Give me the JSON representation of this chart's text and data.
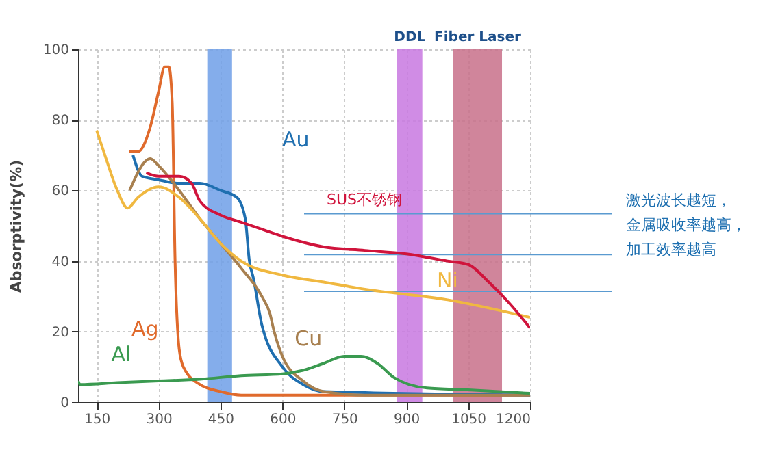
{
  "chart_data": {
    "type": "line",
    "ylabel": "Absorptivity(%)",
    "xlim": [
      105,
      1200
    ],
    "ylim": [
      0,
      100
    ],
    "xticks": [
      150,
      300,
      450,
      600,
      750,
      900,
      1050,
      1200
    ],
    "yticks": [
      0,
      20,
      40,
      60,
      80,
      100
    ],
    "grid": true,
    "line_style": "solid",
    "marker": "none",
    "series": [
      {
        "name": "Ag",
        "color": "#e06a2c",
        "x": [
          228,
          250,
          280,
          300,
          315,
          325,
          333,
          340,
          350,
          360,
          400,
          450,
          500,
          1200
        ],
        "values": [
          71,
          71,
          78,
          88,
          95,
          95,
          85,
          40,
          15,
          10,
          5,
          3,
          2,
          2
        ]
      },
      {
        "name": "Au",
        "color": "#1f6fb0",
        "x": [
          238,
          260,
          300,
          350,
          400,
          450,
          490,
          510,
          520,
          530,
          550,
          600,
          650,
          700,
          1200
        ],
        "values": [
          70,
          64,
          63,
          62,
          62,
          60,
          58,
          52,
          40,
          35,
          22,
          10,
          5,
          3,
          2
        ]
      },
      {
        "name": "Cu",
        "color": "#a88050",
        "x": [
          230,
          280,
          300,
          350,
          400,
          450,
          500,
          550,
          570,
          580,
          600,
          650,
          700,
          800,
          1200
        ],
        "values": [
          60,
          69,
          67,
          60,
          52,
          45,
          38,
          30,
          25,
          20,
          13,
          6,
          3,
          2,
          2
        ]
      },
      {
        "name": "Ni",
        "color": "#f0b840",
        "x": [
          150,
          170,
          200,
          225,
          250,
          300,
          350,
          400,
          450,
          500,
          600,
          700,
          800,
          1000,
          1200
        ],
        "values": [
          77,
          70,
          60,
          55,
          58,
          61,
          58,
          52,
          45,
          40,
          36,
          34,
          32,
          29,
          24
        ]
      },
      {
        "name": "SUS不锈钢",
        "color": "#d0143c",
        "x": [
          270,
          300,
          350,
          380,
          400,
          450,
          500,
          550,
          600,
          700,
          800,
          900,
          1000,
          1050,
          1100,
          1150,
          1200
        ],
        "values": [
          65,
          64,
          64,
          62,
          57,
          53,
          51,
          49,
          47,
          44,
          43,
          42,
          40,
          39,
          34,
          28,
          21
        ]
      },
      {
        "name": "Al",
        "color": "#3a9a50",
        "x": [
          105,
          110,
          200,
          300,
          400,
          500,
          600,
          650,
          700,
          750,
          790,
          830,
          870,
          950,
          1050,
          1200
        ],
        "values": [
          6,
          5,
          5.5,
          6,
          6.5,
          7.5,
          8,
          9,
          11,
          13,
          13,
          11,
          7,
          4,
          3.5,
          2.5
        ]
      }
    ],
    "bands": [
      {
        "axis": "x",
        "from": 418,
        "to": 478,
        "label": null,
        "color": "#6f9fe8"
      },
      {
        "axis": "x",
        "from": 878,
        "to": 939,
        "label": "DDL",
        "color": "#c878e0"
      },
      {
        "axis": "x",
        "from": 1014,
        "to": 1132,
        "label": "Fiber Laser",
        "color": "#c8708a"
      }
    ],
    "ref_lines": [
      {
        "axis": "y",
        "value": 53.4,
        "label": null,
        "color": "#5a9ad0"
      },
      {
        "axis": "y",
        "value": 41.8,
        "label": null,
        "color": "#5a9ad0"
      },
      {
        "axis": "y",
        "value": 31.4,
        "label": null,
        "color": "#5a9ad0"
      }
    ],
    "annotations": [
      "激光波长越短，",
      "金属吸收率越高，",
      "加工效率越高"
    ]
  }
}
